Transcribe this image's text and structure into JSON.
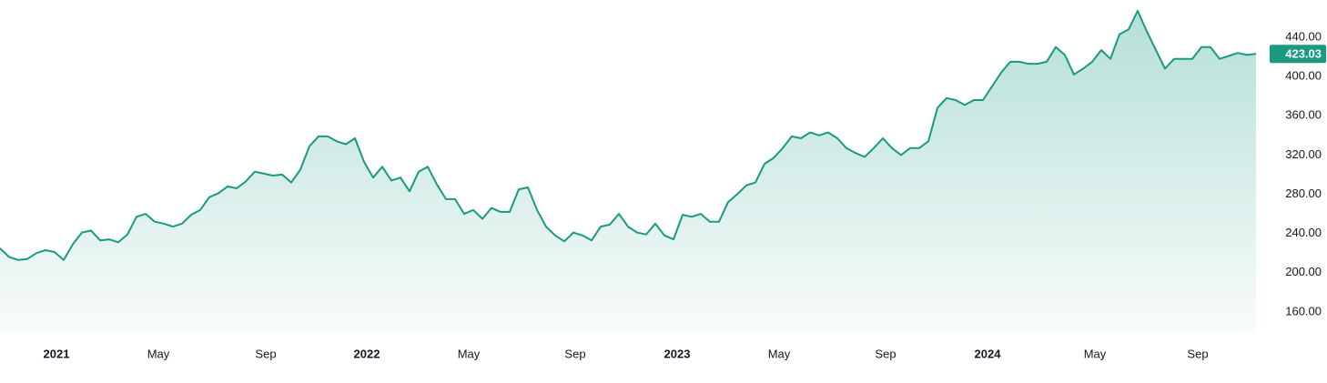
{
  "chart_data": {
    "type": "area",
    "color": "#1a9a80",
    "ylim": [
      139.5,
      478
    ],
    "yticks": [
      {
        "value": 160,
        "label": "160.00"
      },
      {
        "value": 200,
        "label": "200.00"
      },
      {
        "value": 240,
        "label": "240.00"
      },
      {
        "value": 280,
        "label": "280.00"
      },
      {
        "value": 320,
        "label": "320.00"
      },
      {
        "value": 360,
        "label": "360.00"
      },
      {
        "value": 400,
        "label": "400.00"
      },
      {
        "value": 440,
        "label": "440.00"
      }
    ],
    "xticks": [
      {
        "value": 6.2,
        "label": "2021"
      },
      {
        "value": 17.4,
        "label": "May"
      },
      {
        "value": 29.2,
        "label": "Sep"
      },
      {
        "value": 40.3,
        "label": "2022"
      },
      {
        "value": 51.5,
        "label": "May"
      },
      {
        "value": 63.2,
        "label": "Sep"
      },
      {
        "value": 74.4,
        "label": "2023"
      },
      {
        "value": 85.6,
        "label": "May"
      },
      {
        "value": 97.3,
        "label": "Sep"
      },
      {
        "value": 108.5,
        "label": "2024"
      },
      {
        "value": 120.3,
        "label": "May"
      },
      {
        "value": 131.6,
        "label": "Sep"
      }
    ],
    "values": [
      225,
      216,
      213,
      214,
      220,
      223,
      221,
      213,
      229,
      241,
      243,
      233,
      234,
      231,
      239,
      257,
      260,
      252,
      250,
      247,
      250,
      259,
      264,
      277,
      281,
      288,
      286,
      293,
      303,
      301,
      299,
      300,
      292,
      305,
      329,
      339,
      339,
      334,
      331,
      337,
      313,
      297,
      308,
      294,
      297,
      283,
      303,
      308,
      290,
      275,
      275,
      260,
      264,
      255,
      266,
      262,
      262,
      285,
      287,
      264,
      247,
      238,
      232,
      241,
      238,
      233,
      247,
      249,
      260,
      247,
      241,
      239,
      250,
      238,
      234,
      259,
      257,
      260,
      252,
      252,
      272,
      280,
      289,
      292,
      311,
      317,
      327,
      339,
      337,
      343,
      340,
      343,
      337,
      327,
      322,
      318,
      327,
      337,
      327,
      320,
      327,
      327,
      334,
      368,
      378,
      376,
      371,
      376,
      376,
      390,
      404,
      415,
      415,
      413,
      413,
      415,
      430,
      422,
      402,
      408,
      415,
      427,
      418,
      443,
      448,
      467,
      446,
      427,
      408,
      418,
      418,
      418,
      430,
      430,
      418,
      421,
      424,
      422,
      423.03
    ]
  }
}
